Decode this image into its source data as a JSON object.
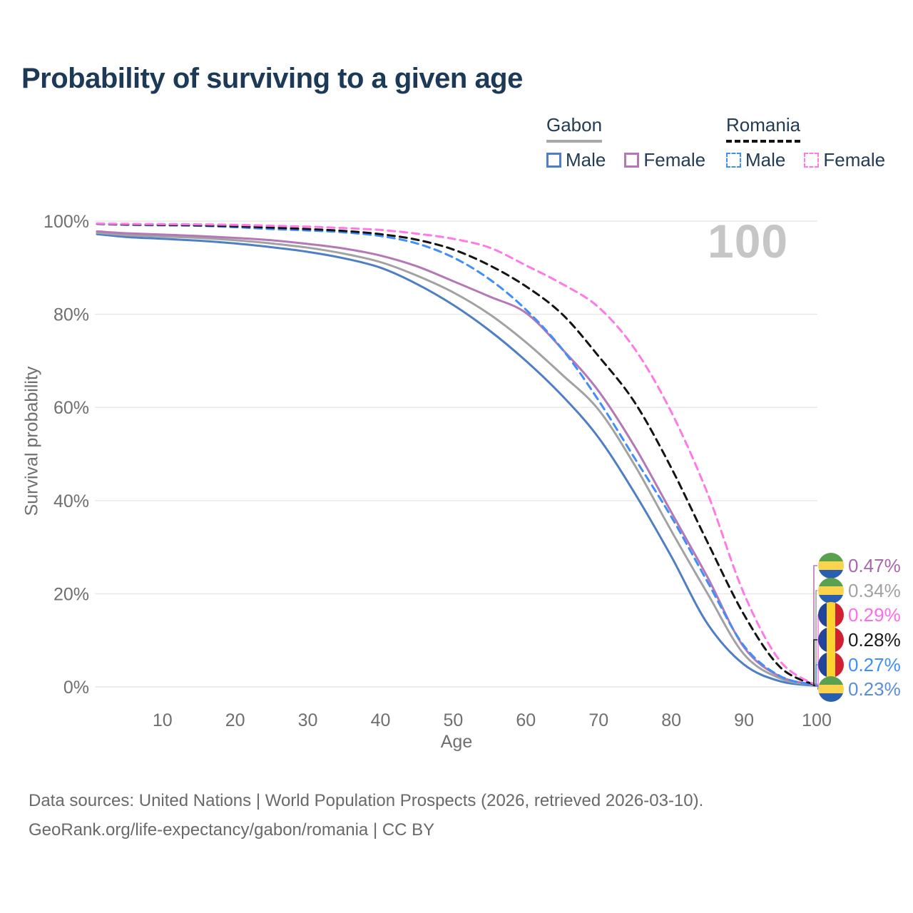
{
  "title": "Probability of surviving to a given age",
  "watermark": "100",
  "legend": {
    "gabon": {
      "country": "Gabon",
      "line_style": "solid",
      "underline_color": "#a8a8a8",
      "male": {
        "label": "Male",
        "color": "#4e7fc4"
      },
      "female": {
        "label": "Female",
        "color": "#b478b4"
      }
    },
    "romania": {
      "country": "Romania",
      "line_style": "dashed",
      "underline_color": "#141414",
      "male": {
        "label": "Male",
        "color": "#3f8efa"
      },
      "female": {
        "label": "Female",
        "color": "#ff7ae5"
      }
    }
  },
  "chart_data": {
    "type": "line",
    "x_label": "Age",
    "y_label": "Survival probability",
    "xlim": [
      1,
      100
    ],
    "ylim": [
      0,
      100
    ],
    "grid": "horizontal",
    "legend_position": "top-right",
    "x": [
      1,
      5,
      10,
      15,
      20,
      25,
      30,
      35,
      40,
      45,
      50,
      55,
      60,
      65,
      70,
      75,
      80,
      85,
      90,
      95,
      100
    ],
    "xticks": [
      10,
      20,
      30,
      40,
      50,
      60,
      70,
      80,
      90,
      100
    ],
    "yticks": [
      {
        "value": 0,
        "label": "0%"
      },
      {
        "value": 20,
        "label": "20%"
      },
      {
        "value": 40,
        "label": "40%"
      },
      {
        "value": 60,
        "label": "60%"
      },
      {
        "value": 80,
        "label": "80%"
      },
      {
        "value": 100,
        "label": "100%"
      }
    ],
    "series": [
      {
        "name": "Gabon Male",
        "country": "Gabon",
        "sex": "Male",
        "color": "#4e7fc4",
        "dash": "solid",
        "values": [
          97.2,
          96.6,
          96.2,
          95.8,
          95.2,
          94.4,
          93.4,
          92.0,
          90.0,
          86.5,
          82.0,
          76.5,
          70.0,
          62.5,
          53.5,
          41.5,
          28.0,
          13.5,
          4.8,
          1.2,
          0.23
        ]
      },
      {
        "name": "Gabon Both sexes",
        "country": "Gabon",
        "sex": "Both",
        "color": "#a2a2a2",
        "dash": "solid",
        "values": [
          97.5,
          97.0,
          96.7,
          96.4,
          95.9,
          95.2,
          94.3,
          93.0,
          91.2,
          88.3,
          84.7,
          80.0,
          74.0,
          67.0,
          59.5,
          47.5,
          33.5,
          20.0,
          7.0,
          1.8,
          0.34
        ]
      },
      {
        "name": "Gabon Female",
        "country": "Gabon",
        "sex": "Female",
        "color": "#b478b4",
        "dash": "solid",
        "values": [
          97.8,
          97.4,
          97.1,
          96.8,
          96.4,
          95.9,
          95.1,
          94.1,
          92.6,
          90.3,
          87.1,
          83.8,
          80.3,
          72.5,
          63.5,
          51.5,
          37.5,
          23.5,
          8.5,
          2.2,
          0.47
        ]
      },
      {
        "name": "Romania Male",
        "country": "Romania",
        "sex": "Male",
        "color": "#3f8efa",
        "dash": "dashed",
        "values": [
          99.4,
          99.2,
          99.1,
          99.0,
          98.7,
          98.3,
          98.0,
          97.6,
          96.8,
          95.2,
          92.2,
          87.5,
          81.0,
          72.5,
          61.5,
          49.0,
          36.5,
          22.5,
          8.8,
          2.3,
          0.27
        ]
      },
      {
        "name": "Romania Both sexes",
        "country": "Romania",
        "sex": "Both",
        "color": "#141414",
        "dash": "dashed",
        "values": [
          99.45,
          99.3,
          99.2,
          99.1,
          98.9,
          98.6,
          98.3,
          97.9,
          97.2,
          96.0,
          93.9,
          90.5,
          86.0,
          80.0,
          71.0,
          61.0,
          47.0,
          31.0,
          15.5,
          4.2,
          0.28
        ]
      },
      {
        "name": "Romania Female",
        "country": "Romania",
        "sex": "Female",
        "color": "#ff7ae5",
        "dash": "dashed",
        "values": [
          99.5,
          99.4,
          99.35,
          99.3,
          99.2,
          99.0,
          98.8,
          98.5,
          98.1,
          97.3,
          96.2,
          94.3,
          90.5,
          86.5,
          81.5,
          72.5,
          59.0,
          41.5,
          20.0,
          5.5,
          0.29
        ]
      }
    ],
    "end_labels": [
      {
        "value": "0.47%",
        "series": "Gabon Female",
        "flag": "gabon",
        "text_color": "#a866ae"
      },
      {
        "value": "0.34%",
        "series": "Gabon Both sexes",
        "flag": "gabon",
        "text_color": "#a2a2a2"
      },
      {
        "value": "0.29%",
        "series": "Romania Female",
        "flag": "romania",
        "text_color": "#ff6ce8"
      },
      {
        "value": "0.28%",
        "series": "Romania Both sexes",
        "flag": "romania",
        "text_color": "#1a1a1a"
      },
      {
        "value": "0.27%",
        "series": "Romania Male",
        "flag": "romania",
        "text_color": "#3f8efa"
      },
      {
        "value": "0.23%",
        "series": "Gabon Male",
        "flag": "gabon",
        "text_color": "#5b8ed6"
      }
    ]
  },
  "footer": {
    "line1": "Data sources: United Nations | World Population Prospects (2026, retrieved 2026-03-10).",
    "line2": "GeoRank.org/life-expectancy/gabon/romania | CC BY"
  }
}
